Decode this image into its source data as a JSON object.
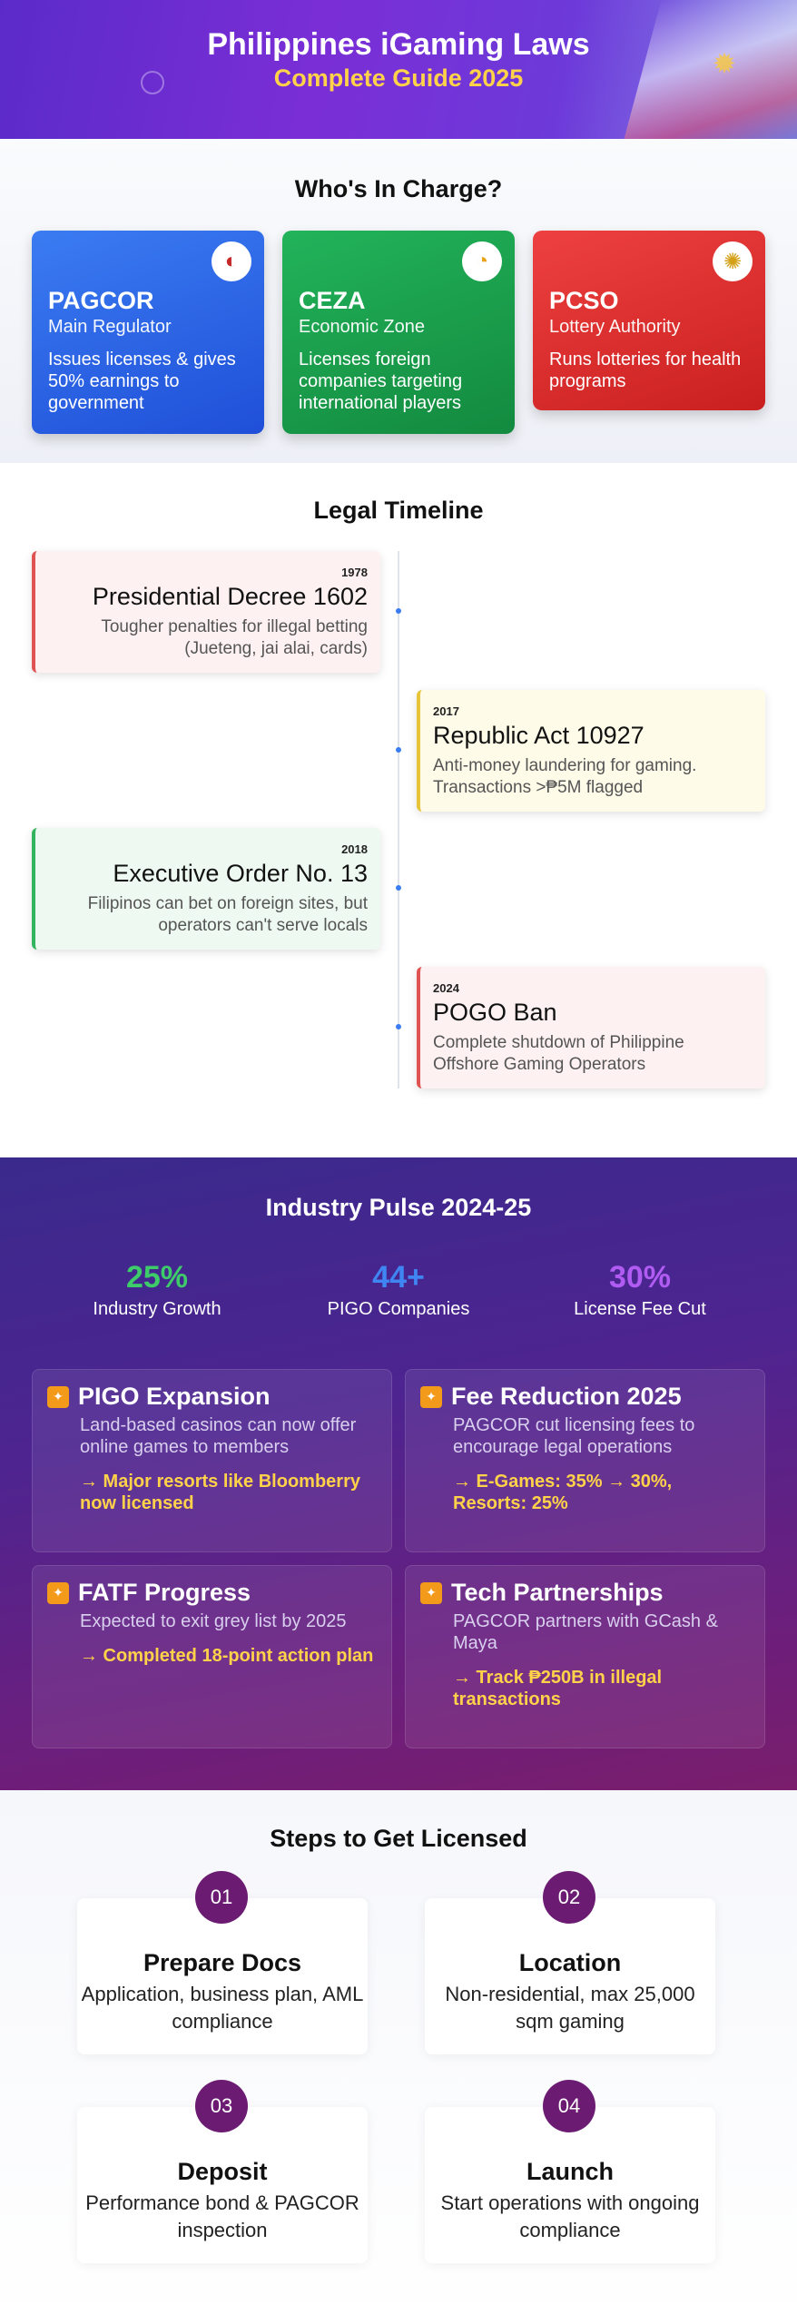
{
  "header": {
    "title": "Philippines iGaming Laws",
    "subtitle": "Complete Guide 2025"
  },
  "charge": {
    "title": "Who's In Charge?",
    "cards": [
      {
        "name": "PAGCOR",
        "role": "Main Regulator",
        "desc": "Issues licenses & gives 50% earnings to government",
        "color": "#2f66e6",
        "logo_icon": "pagcor-logo-icon"
      },
      {
        "name": "CEZA",
        "role": "Economic Zone",
        "desc": "Licenses foreign companies targeting international players",
        "color": "#1ea04e",
        "logo_icon": "ceza-logo-icon"
      },
      {
        "name": "PCSO",
        "role": "Lottery Authority",
        "desc": "Runs lotteries for health programs",
        "color": "#dd3030",
        "logo_icon": "pcso-logo-icon"
      }
    ]
  },
  "timeline": {
    "title": "Legal Timeline",
    "events": [
      {
        "year": "1978",
        "title": "Presidential Decree 1602",
        "desc": "Tougher penalties for illegal betting (Jueteng, jai alai, cards)",
        "side": "left",
        "bg": "#fdf1f1",
        "border": "#e05353"
      },
      {
        "year": "2017",
        "title": "Republic Act 10927",
        "desc": "Anti-money laundering for gaming. Transactions >₱5M flagged",
        "side": "right",
        "bg": "#fefbe8",
        "border": "#e8c43a"
      },
      {
        "year": "2018",
        "title": "Executive Order No. 13",
        "desc": "Filipinos can bet on foreign sites, but operators can't serve locals",
        "side": "left",
        "bg": "#eefaf1",
        "border": "#34b45e"
      },
      {
        "year": "2024",
        "title": "POGO Ban",
        "desc": "Complete shutdown of Philippine Offshore Gaming Operators",
        "side": "right",
        "bg": "#fdf1f1",
        "border": "#e05353"
      }
    ]
  },
  "pulse": {
    "title": "Industry Pulse 2024-25",
    "stats": [
      {
        "value": "25%",
        "label": "Industry Growth",
        "color": "#3ecb6a"
      },
      {
        "value": "44+",
        "label": "PIGO Companies",
        "color": "#3f86f2"
      },
      {
        "value": "30%",
        "label": "License Fee Cut",
        "color": "#b05cf2"
      }
    ],
    "cards": [
      {
        "title": "PIGO Expansion",
        "desc": "Land-based casinos can now offer online games to members",
        "note": "→ Major resorts like Bloomberry now licensed",
        "icon": "spark-icon"
      },
      {
        "title": "Fee Reduction 2025",
        "desc": "PAGCOR cut licensing fees to encourage legal operations",
        "note": "→ E-Games: 35% → 30%, Resorts: 25%",
        "icon": "spark-icon"
      },
      {
        "title": "FATF Progress",
        "desc": "Expected to exit grey list by 2025",
        "note": "→ Completed 18-point action plan",
        "icon": "spark-icon"
      },
      {
        "title": "Tech Partnerships",
        "desc": "PAGCOR partners with GCash & Maya",
        "note": "→ Track ₱250B in illegal transactions",
        "icon": "spark-icon"
      }
    ]
  },
  "steps": {
    "title": "Steps to Get Licensed",
    "items": [
      {
        "num": "01",
        "title": "Prepare Docs",
        "desc": "Application, business plan, AML compliance"
      },
      {
        "num": "02",
        "title": "Location",
        "desc": "Non-residential, max 25,000 sqm gaming"
      },
      {
        "num": "03",
        "title": "Deposit",
        "desc": "Performance bond & PAGCOR inspection"
      },
      {
        "num": "04",
        "title": "Launch",
        "desc": "Start operations with ongoing compliance"
      }
    ]
  }
}
